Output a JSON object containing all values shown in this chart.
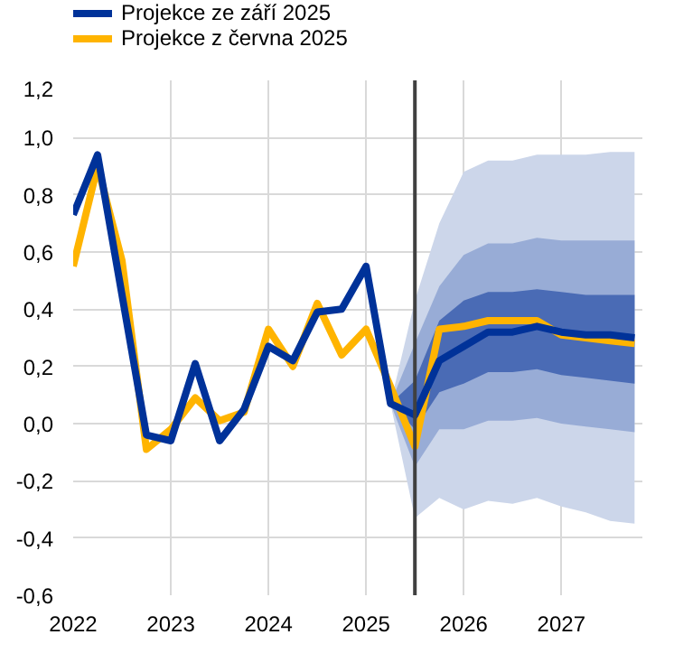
{
  "chart_data": {
    "type": "line",
    "xlim": [
      2022,
      2027.83
    ],
    "xticks": [
      2022,
      2023,
      2024,
      2025,
      2026,
      2027
    ],
    "ylim": [
      -0.6,
      1.2
    ],
    "yticks": [
      {
        "value": -0.6,
        "label": "-0,6"
      },
      {
        "value": -0.4,
        "label": "-0,4"
      },
      {
        "value": -0.2,
        "label": "-0,2"
      },
      {
        "value": 0,
        "label": "0,0"
      },
      {
        "value": 0.2,
        "label": "0,2"
      },
      {
        "value": 0.4,
        "label": "0,4"
      },
      {
        "value": 0.6,
        "label": "0,6"
      },
      {
        "value": 0.8,
        "label": "0,8"
      },
      {
        "value": 1.0,
        "label": "1,0"
      },
      {
        "value": 1.2,
        "label": "1,2"
      }
    ],
    "grid": true,
    "legend": "top left",
    "series": [
      {
        "color": "#ccd6ea",
        "x": [
          2025.25,
          2025.5,
          2025.75,
          2026,
          2026.25,
          2026.5,
          2026.75,
          2027,
          2027.25,
          2027.5,
          2027.75
        ],
        "values": [
          null,
          null,
          null,
          null,
          null,
          null,
          null,
          null,
          null,
          null,
          null
        ],
        "upper": [
          0.07,
          0.43,
          0.7,
          0.88,
          0.92,
          0.92,
          0.94,
          0.94,
          0.94,
          0.95,
          0.95
        ],
        "lower": [
          0.07,
          -0.33,
          -0.26,
          -0.3,
          -0.27,
          -0.28,
          -0.26,
          -0.29,
          -0.31,
          -0.34,
          -0.35
        ]
      },
      {
        "color": "#98acd6",
        "x": [
          2025.25,
          2025.5,
          2025.75,
          2026,
          2026.25,
          2026.5,
          2026.75,
          2027,
          2027.25,
          2027.5,
          2027.75
        ],
        "values": [
          null,
          null,
          null,
          null,
          null,
          null,
          null,
          null,
          null,
          null,
          null
        ],
        "upper": [
          0.07,
          0.28,
          0.48,
          0.59,
          0.63,
          0.63,
          0.65,
          0.64,
          0.64,
          0.64,
          0.64
        ],
        "lower": [
          0.07,
          -0.15,
          -0.02,
          -0.02,
          0.01,
          0.01,
          0.02,
          0.0,
          -0.01,
          -0.02,
          -0.03
        ]
      },
      {
        "color": "#4a6bb5",
        "x": [
          2025.25,
          2025.5,
          2025.75,
          2026,
          2026.25,
          2026.5,
          2026.75,
          2027,
          2027.25,
          2027.5,
          2027.75
        ],
        "values": [
          null,
          null,
          null,
          null,
          null,
          null,
          null,
          null,
          null,
          null,
          null
        ],
        "upper": [
          0.07,
          0.15,
          0.36,
          0.43,
          0.46,
          0.46,
          0.47,
          0.46,
          0.45,
          0.45,
          0.45
        ],
        "lower": [
          0.07,
          -0.02,
          0.11,
          0.14,
          0.18,
          0.18,
          0.19,
          0.17,
          0.16,
          0.15,
          0.14
        ]
      },
      {
        "name": "Projekce z června 2025",
        "color": "#ffb400",
        "x": [
          2022,
          2022.25,
          2022.5,
          2022.75,
          2023,
          2023.25,
          2023.5,
          2023.75,
          2024,
          2024.25,
          2024.5,
          2024.75,
          2025,
          2025.25,
          2025.5,
          2025.75,
          2026,
          2026.25,
          2026.5,
          2026.75,
          2027,
          2027.25,
          2027.5,
          2027.75
        ],
        "values": [
          0.55,
          0.9,
          0.57,
          -0.09,
          -0.02,
          0.09,
          0.01,
          0.04,
          0.33,
          0.2,
          0.42,
          0.24,
          0.33,
          0.13,
          -0.08,
          0.33,
          0.34,
          0.36,
          0.36,
          0.36,
          0.31,
          0.3,
          0.29,
          0.28
        ]
      },
      {
        "name": "Projekce ze září 2025",
        "color": "#003299",
        "x": [
          2022,
          2022.25,
          2022.5,
          2022.75,
          2023,
          2023.25,
          2023.5,
          2023.75,
          2024,
          2024.25,
          2024.5,
          2024.75,
          2025,
          2025.25,
          2025.5,
          2025.75,
          2026,
          2026.25,
          2026.5,
          2026.75,
          2027,
          2027.25,
          2027.5,
          2027.75
        ],
        "values": [
          0.73,
          0.94,
          0.45,
          -0.04,
          -0.06,
          0.21,
          -0.06,
          0.05,
          0.27,
          0.22,
          0.39,
          0.4,
          0.55,
          0.07,
          0.03,
          0.22,
          0.27,
          0.32,
          0.32,
          0.34,
          0.32,
          0.31,
          0.31,
          0.3
        ]
      }
    ],
    "ref_lines": [
      {
        "axis": "x",
        "value": 2025.5,
        "color": "#404040"
      }
    ]
  }
}
